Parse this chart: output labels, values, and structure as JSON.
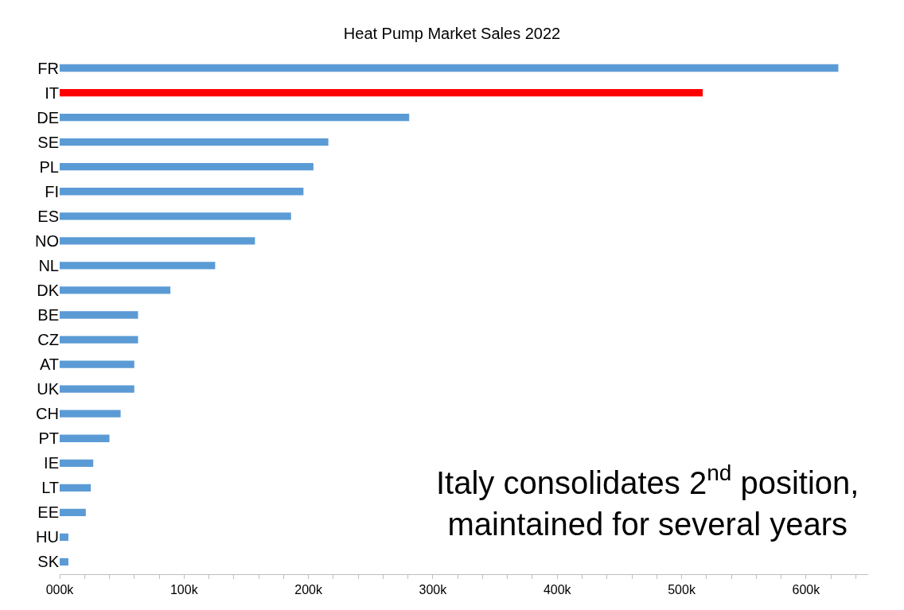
{
  "chart_data": {
    "type": "bar",
    "orientation": "horizontal",
    "title": "Heat Pump Market Sales 2022",
    "categories": [
      "FR",
      "IT",
      "DE",
      "SE",
      "PL",
      "FI",
      "ES",
      "NO",
      "NL",
      "DK",
      "BE",
      "CZ",
      "AT",
      "UK",
      "CH",
      "PT",
      "IE",
      "LT",
      "EE",
      "HU",
      "SK"
    ],
    "values": [
      626000,
      517000,
      281000,
      216000,
      204000,
      196000,
      186000,
      157000,
      125000,
      89000,
      63000,
      63000,
      60000,
      60000,
      49000,
      40000,
      27000,
      25000,
      21000,
      7000,
      7000
    ],
    "colors": [
      "#5b9bd5",
      "#ff0000",
      "#5b9bd5",
      "#5b9bd5",
      "#5b9bd5",
      "#5b9bd5",
      "#5b9bd5",
      "#5b9bd5",
      "#5b9bd5",
      "#5b9bd5",
      "#5b9bd5",
      "#5b9bd5",
      "#5b9bd5",
      "#5b9bd5",
      "#5b9bd5",
      "#5b9bd5",
      "#5b9bd5",
      "#5b9bd5",
      "#5b9bd5",
      "#5b9bd5",
      "#5b9bd5"
    ],
    "xlim": [
      0,
      650000
    ],
    "xticks": [
      {
        "value": 0,
        "label": "000k"
      },
      {
        "value": 20000,
        "label": null
      },
      {
        "value": 40000,
        "label": null
      },
      {
        "value": 60000,
        "label": null
      },
      {
        "value": 80000,
        "label": null
      },
      {
        "value": 100000,
        "label": "100k"
      },
      {
        "value": 120000,
        "label": null
      },
      {
        "value": 140000,
        "label": null
      },
      {
        "value": 160000,
        "label": null
      },
      {
        "value": 180000,
        "label": null
      },
      {
        "value": 200000,
        "label": "200k"
      },
      {
        "value": 220000,
        "label": null
      },
      {
        "value": 240000,
        "label": null
      },
      {
        "value": 260000,
        "label": null
      },
      {
        "value": 280000,
        "label": null
      },
      {
        "value": 300000,
        "label": "300k"
      },
      {
        "value": 320000,
        "label": null
      },
      {
        "value": 340000,
        "label": null
      },
      {
        "value": 360000,
        "label": null
      },
      {
        "value": 380000,
        "label": null
      },
      {
        "value": 400000,
        "label": "400k"
      },
      {
        "value": 420000,
        "label": null
      },
      {
        "value": 440000,
        "label": null
      },
      {
        "value": 460000,
        "label": null
      },
      {
        "value": 480000,
        "label": null
      },
      {
        "value": 500000,
        "label": "500k"
      },
      {
        "value": 520000,
        "label": null
      },
      {
        "value": 540000,
        "label": null
      },
      {
        "value": 560000,
        "label": null
      },
      {
        "value": 580000,
        "label": null
      },
      {
        "value": 600000,
        "label": "600k"
      },
      {
        "value": 620000,
        "label": null
      },
      {
        "value": 640000,
        "label": null
      }
    ],
    "annotations": [
      "Italy consolidates 2$^{nd}$ position,\nmaintained for several years"
    ]
  }
}
